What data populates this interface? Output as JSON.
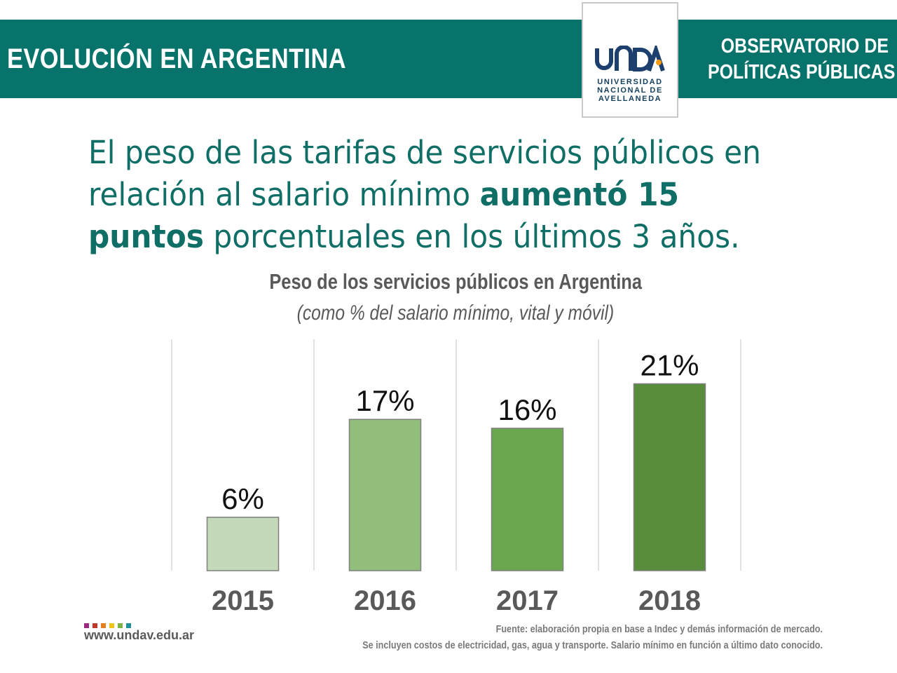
{
  "header": {
    "title": "EVOLUCIÓN EN ARGENTINA",
    "observatorio_line1": "OBSERVATORIO DE",
    "observatorio_line2": "POLÍTICAS PÚBLICAS",
    "logo_text": [
      "UNIVERSIDAD",
      "NACIONAL DE",
      "AVELLANEDA"
    ]
  },
  "headline": {
    "line1": "El peso de las tarifas de servicios públicos en",
    "line2_regular": "relación al salario mínimo ",
    "line2_bold": "aumentó 15",
    "line3_bold": "puntos",
    "line3_regular": " porcentuales en los últimos 3 años."
  },
  "chart_data": {
    "type": "bar",
    "title": "Peso de los servicios públicos en Argentina",
    "subtitle": "(como % del salario mínimo, vital y móvil)",
    "categories": [
      "2015",
      "2016",
      "2017",
      "2018"
    ],
    "values": [
      6,
      17,
      16,
      21
    ],
    "value_labels": [
      "6%",
      "17%",
      "16%",
      "21%"
    ],
    "bar_colors": [
      "#c4d9b7",
      "#92be7c",
      "#6aa84f",
      "#588b3a"
    ],
    "ylim": [
      0,
      26
    ],
    "grid": "vertical separators",
    "legend": "none"
  },
  "footer": {
    "source_line1": "Fuente: elaboración propia en base a Indec y demás información de mercado.",
    "source_line2": "Se incluyen costos de electricidad, gas, agua y transporte. Salario mínimo en función a último dato conocido.",
    "url": "www.undav.edu.ar",
    "dot_colors": [
      "#9b2b7e",
      "#c0392b",
      "#e67e22",
      "#f1c40f",
      "#7cb342",
      "#1f8f9a"
    ]
  },
  "colors": {
    "brand": "#08736b",
    "headline": "#0f6e66"
  }
}
